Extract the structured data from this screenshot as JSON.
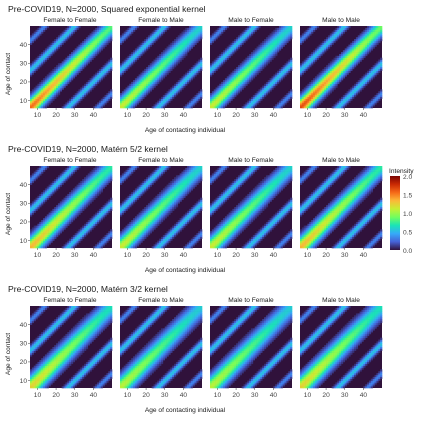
{
  "colors": {
    "scale": [
      "#30123b",
      "#4662d7",
      "#36aaf9",
      "#1ae4b6",
      "#72fe5e",
      "#c7ef34",
      "#fbb938",
      "#f56918",
      "#c92903",
      "#7a0403"
    ],
    "background": "#30123b"
  },
  "legend": {
    "title": "Intensity",
    "ticks": [
      "2.0",
      "1.5",
      "1.0",
      "0.5",
      "0.0"
    ]
  },
  "chart_data": [
    {
      "type": "heatmap",
      "title": "Pre-COVID19, N=2000, Squared exponential kernel",
      "panels": [
        "Female to Female",
        "Female to Male",
        "Male to Female",
        "Male to Male"
      ],
      "xlabel": "Age of contacting individual",
      "ylabel": "Age of contact",
      "xticks": [
        10,
        20,
        30,
        40
      ],
      "yticks": [
        10,
        20,
        30,
        40
      ],
      "xlim": [
        6,
        50
      ],
      "ylim": [
        6,
        50
      ],
      "zlim": [
        0,
        2
      ],
      "peak_intensity": [
        1.5,
        1.1,
        1.1,
        1.6
      ]
    },
    {
      "type": "heatmap",
      "title": "Pre-COVID19, N=2000, Matérn 5/2 kernel",
      "panels": [
        "Female to Female",
        "Female to Male",
        "Male to Female",
        "Male to Male"
      ],
      "xlabel": "Age of contacting individual",
      "ylabel": "Age of contact",
      "xticks": [
        10,
        20,
        30,
        40
      ],
      "yticks": [
        10,
        20,
        30,
        40
      ],
      "xlim": [
        6,
        50
      ],
      "ylim": [
        6,
        50
      ],
      "zlim": [
        0,
        2
      ],
      "peak_intensity": [
        1.3,
        1.1,
        1.1,
        1.3
      ]
    },
    {
      "type": "heatmap",
      "title": "Pre-COVID19, N=2000, Matérn 3/2 kernel",
      "panels": [
        "Female to Female",
        "Female to Male",
        "Male to Female",
        "Male to Male"
      ],
      "xlabel": "Age of contacting individual",
      "ylabel": "Age of contact",
      "xticks": [
        10,
        20,
        30,
        40
      ],
      "yticks": [
        10,
        20,
        30,
        40
      ],
      "xlim": [
        6,
        50
      ],
      "ylim": [
        6,
        50
      ],
      "zlim": [
        0,
        2
      ],
      "peak_intensity": [
        1.2,
        1.05,
        1.05,
        1.2
      ]
    }
  ]
}
